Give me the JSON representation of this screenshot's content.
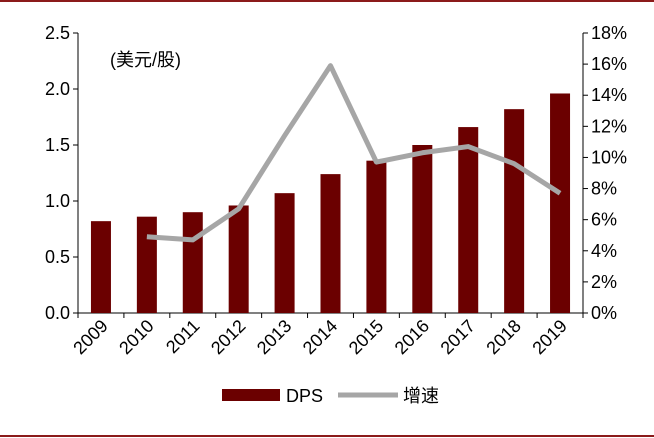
{
  "chart_data": {
    "type": "bar",
    "categories": [
      "2009",
      "2010",
      "2011",
      "2012",
      "2013",
      "2014",
      "2015",
      "2016",
      "2017",
      "2018",
      "2019"
    ],
    "series": [
      {
        "name": "DPS",
        "type": "bar",
        "axis": "left",
        "values": [
          0.82,
          0.86,
          0.9,
          0.96,
          1.07,
          1.24,
          1.36,
          1.5,
          1.66,
          1.82,
          1.96
        ]
      },
      {
        "name": "增速",
        "type": "line",
        "axis": "right",
        "values": [
          null,
          0.049,
          0.047,
          0.067,
          0.114,
          0.159,
          0.097,
          0.103,
          0.107,
          0.096,
          0.077
        ]
      }
    ],
    "ylabel": "(美元/股)",
    "ylim": [
      0,
      2.5
    ],
    "yticks": [
      "0.0",
      "0.5",
      "1.0",
      "1.5",
      "2.0",
      "2.5"
    ],
    "y2lim": [
      0,
      0.18
    ],
    "y2ticks": [
      "0%",
      "2%",
      "4%",
      "6%",
      "8%",
      "10%",
      "12%",
      "14%",
      "16%",
      "18%"
    ],
    "grid": false,
    "legend_position": "bottom",
    "colors": {
      "bar": "#6b0000",
      "line": "#a6a6a6",
      "rule": "#8b1a1a"
    }
  }
}
